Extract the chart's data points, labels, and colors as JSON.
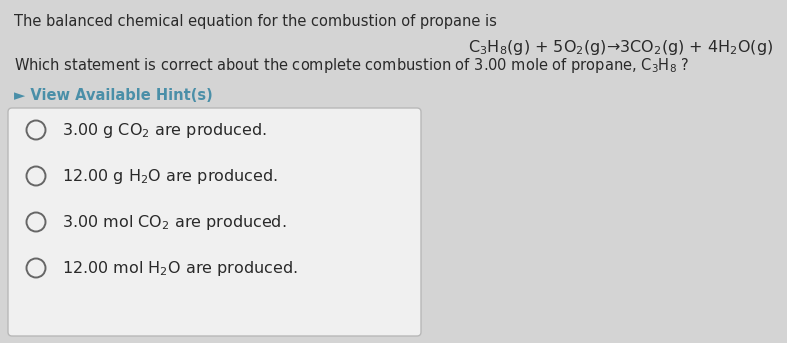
{
  "bg_color": "#d4d4d4",
  "text_color": "#2a2a2a",
  "intro_text": "The balanced chemical equation for the combustion of propane is",
  "equation": "C$_3$H$_8$(g) + 5O$_2$(g)→3CO$_2$(g) + 4H$_2$O(g)",
  "question_line1": "Which statement is correct about the complete combustion of 3.00 mole of propane, C$_3$H$_8$ ?",
  "hint_text": "► View Available Hint(s)",
  "options": [
    "3.00 g CO$_2$ are produced.",
    "12.00 g H$_2$O are produced.",
    "3.00 mol CO$_2$ are produced.",
    "12.00 mol H$_2$O are produced."
  ],
  "box_facecolor": "#f0f0f0",
  "box_edgecolor": "#b8b8b8",
  "hint_color": "#4a8fa8",
  "radio_color": "#666666",
  "font_size_intro": 10.5,
  "font_size_equation": 11.5,
  "font_size_question": 10.5,
  "font_size_hint": 10.5,
  "font_size_option": 11.5
}
